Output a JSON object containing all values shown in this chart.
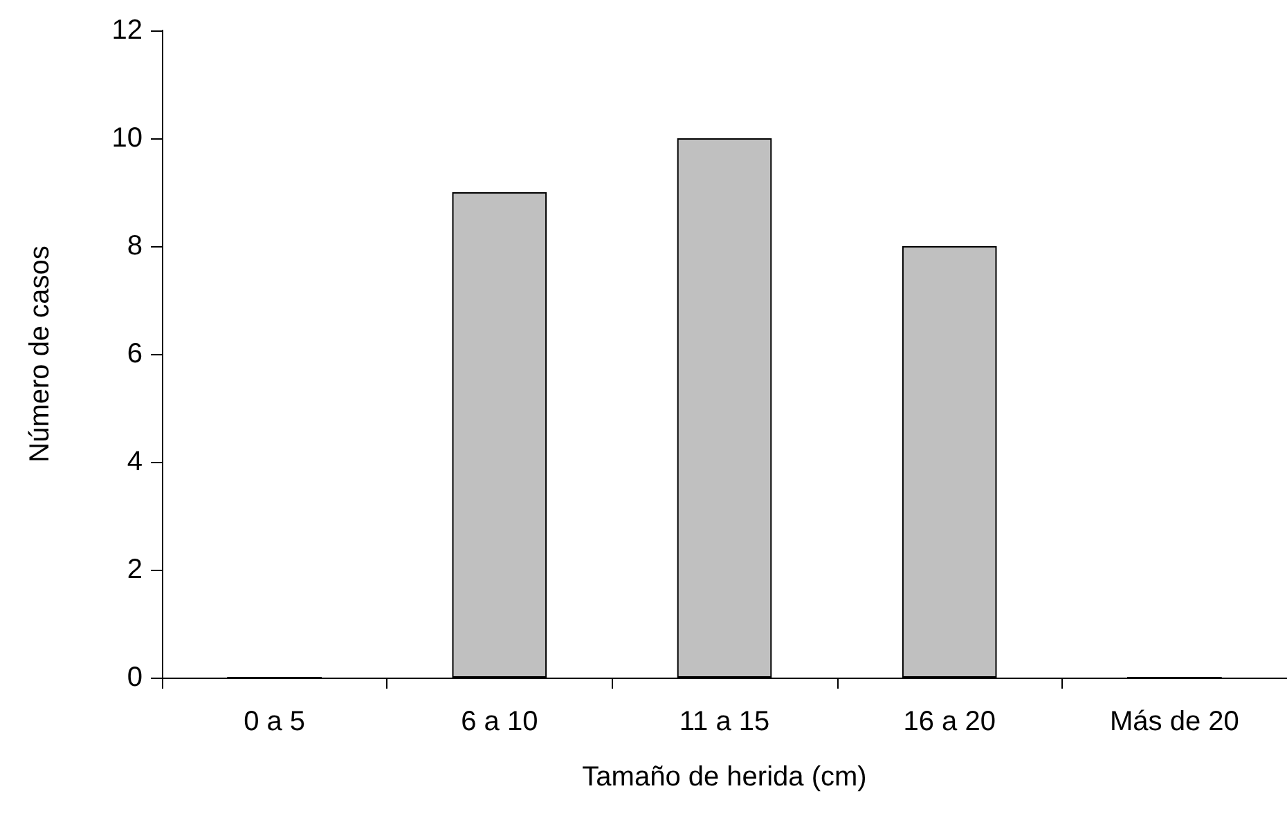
{
  "chart_data": {
    "type": "bar",
    "xlabel": "Tamaño de herida (cm)",
    "ylabel": "Número de casos",
    "categories": [
      "0 a 5",
      "6 a 10",
      "11 a 15",
      "16 a 20",
      "Más de 20"
    ],
    "values": [
      0,
      9,
      10,
      8,
      0
    ],
    "color": "#c0c0c0",
    "ylim": [
      0,
      12
    ],
    "yticks": [
      0,
      2,
      4,
      6,
      8,
      10,
      12
    ],
    "grid": false
  }
}
